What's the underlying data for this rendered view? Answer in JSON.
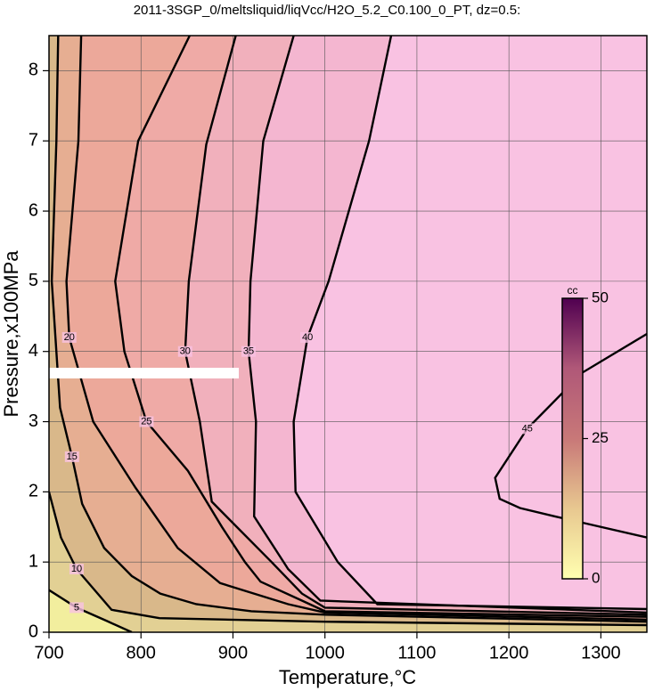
{
  "chart_data": {
    "type": "contour",
    "title": "2011-3SGP_0/meltsliquid/liqVcc/H2O_5.2_C0.100_0_PT, dz=0.5:",
    "xlabel": "Temperature,°C",
    "ylabel": "Pressure,x100MPa",
    "xlim": [
      700,
      1350
    ],
    "ylim": [
      0,
      8.5
    ],
    "xticks": [
      700,
      800,
      900,
      1000,
      1100,
      1200,
      1300
    ],
    "yticks": [
      0,
      1,
      2,
      3,
      4,
      5,
      6,
      7,
      8
    ],
    "grid": true,
    "background": "#f9c2e2",
    "colorbar": {
      "label": "cc",
      "clim": [
        0,
        50
      ],
      "cticks": [
        0,
        25,
        50
      ]
    },
    "contours": [
      {
        "level": 40,
        "color": "#f4b6d0",
        "x": [
          1072,
          1048,
          1004,
          981,
          966,
          968,
          1014,
          1057,
          1350
        ],
        "y": [
          8.5,
          7,
          5,
          4.2,
          3,
          2,
          1,
          0.4,
          0.33
        ]
      },
      {
        "level": 35,
        "color": "#f1b0bc",
        "x": [
          966,
          933,
          919,
          917,
          925,
          923,
          960,
          995,
          1350
        ],
        "y": [
          8.5,
          7,
          5,
          4,
          3,
          1.65,
          0.9,
          0.45,
          0.28
        ]
      },
      {
        "level": 30,
        "color": "#efaaa6",
        "x": [
          903,
          871,
          852,
          848,
          864,
          877,
          942,
          975,
          1000,
          1350
        ],
        "y": [
          8.5,
          6.95,
          5,
          4,
          3,
          1.86,
          1,
          0.55,
          0.35,
          0.25
        ]
      },
      {
        "level": 25,
        "color": "#eca89a",
        "x": [
          853,
          797,
          772,
          782,
          806,
          851,
          888,
          913,
          930,
          975,
          1000,
          1350
        ],
        "y": [
          8.5,
          7,
          5,
          4,
          3,
          2.3,
          1.5,
          1,
          0.72,
          0.45,
          0.3,
          0.22
        ]
      },
      {
        "level": 20,
        "color": "#e6ae92",
        "x": [
          735,
          732,
          719,
          722,
          748,
          794,
          840,
          886,
          960,
          1000,
          1350
        ],
        "y": [
          8.5,
          7,
          5,
          4.2,
          3,
          2.06,
          1.2,
          0.7,
          0.4,
          0.28,
          0.18
        ]
      },
      {
        "level": 15,
        "color": "#d9b88a",
        "x": [
          710,
          708,
          703,
          712,
          725,
          736,
          760,
          790,
          821,
          860,
          920,
          1000,
          1350
        ],
        "y": [
          8.5,
          7,
          5,
          3.2,
          2.5,
          1.83,
          1.2,
          0.8,
          0.55,
          0.4,
          0.3,
          0.25,
          0.15
        ]
      },
      {
        "level": 10,
        "color": "#e2d094",
        "x": [
          700,
          713,
          730,
          768,
          820,
          1000,
          1350
        ],
        "y": [
          2,
          1.35,
          0.9,
          0.32,
          0.2,
          0.15,
          0.1
        ]
      },
      {
        "level": 5,
        "color": "#f2ee9e",
        "x": [
          700,
          730,
          763,
          790
        ],
        "y": [
          0.6,
          0.35,
          0.16,
          0
        ]
      },
      {
        "level": 45,
        "x": [
          1350,
          1280,
          1238,
          1220,
          1185,
          1190,
          1212,
          1250,
          1350
        ],
        "y": [
          4.25,
          3.7,
          3.14,
          2.9,
          2.2,
          1.9,
          1.77,
          1.65,
          1.35
        ]
      }
    ]
  }
}
